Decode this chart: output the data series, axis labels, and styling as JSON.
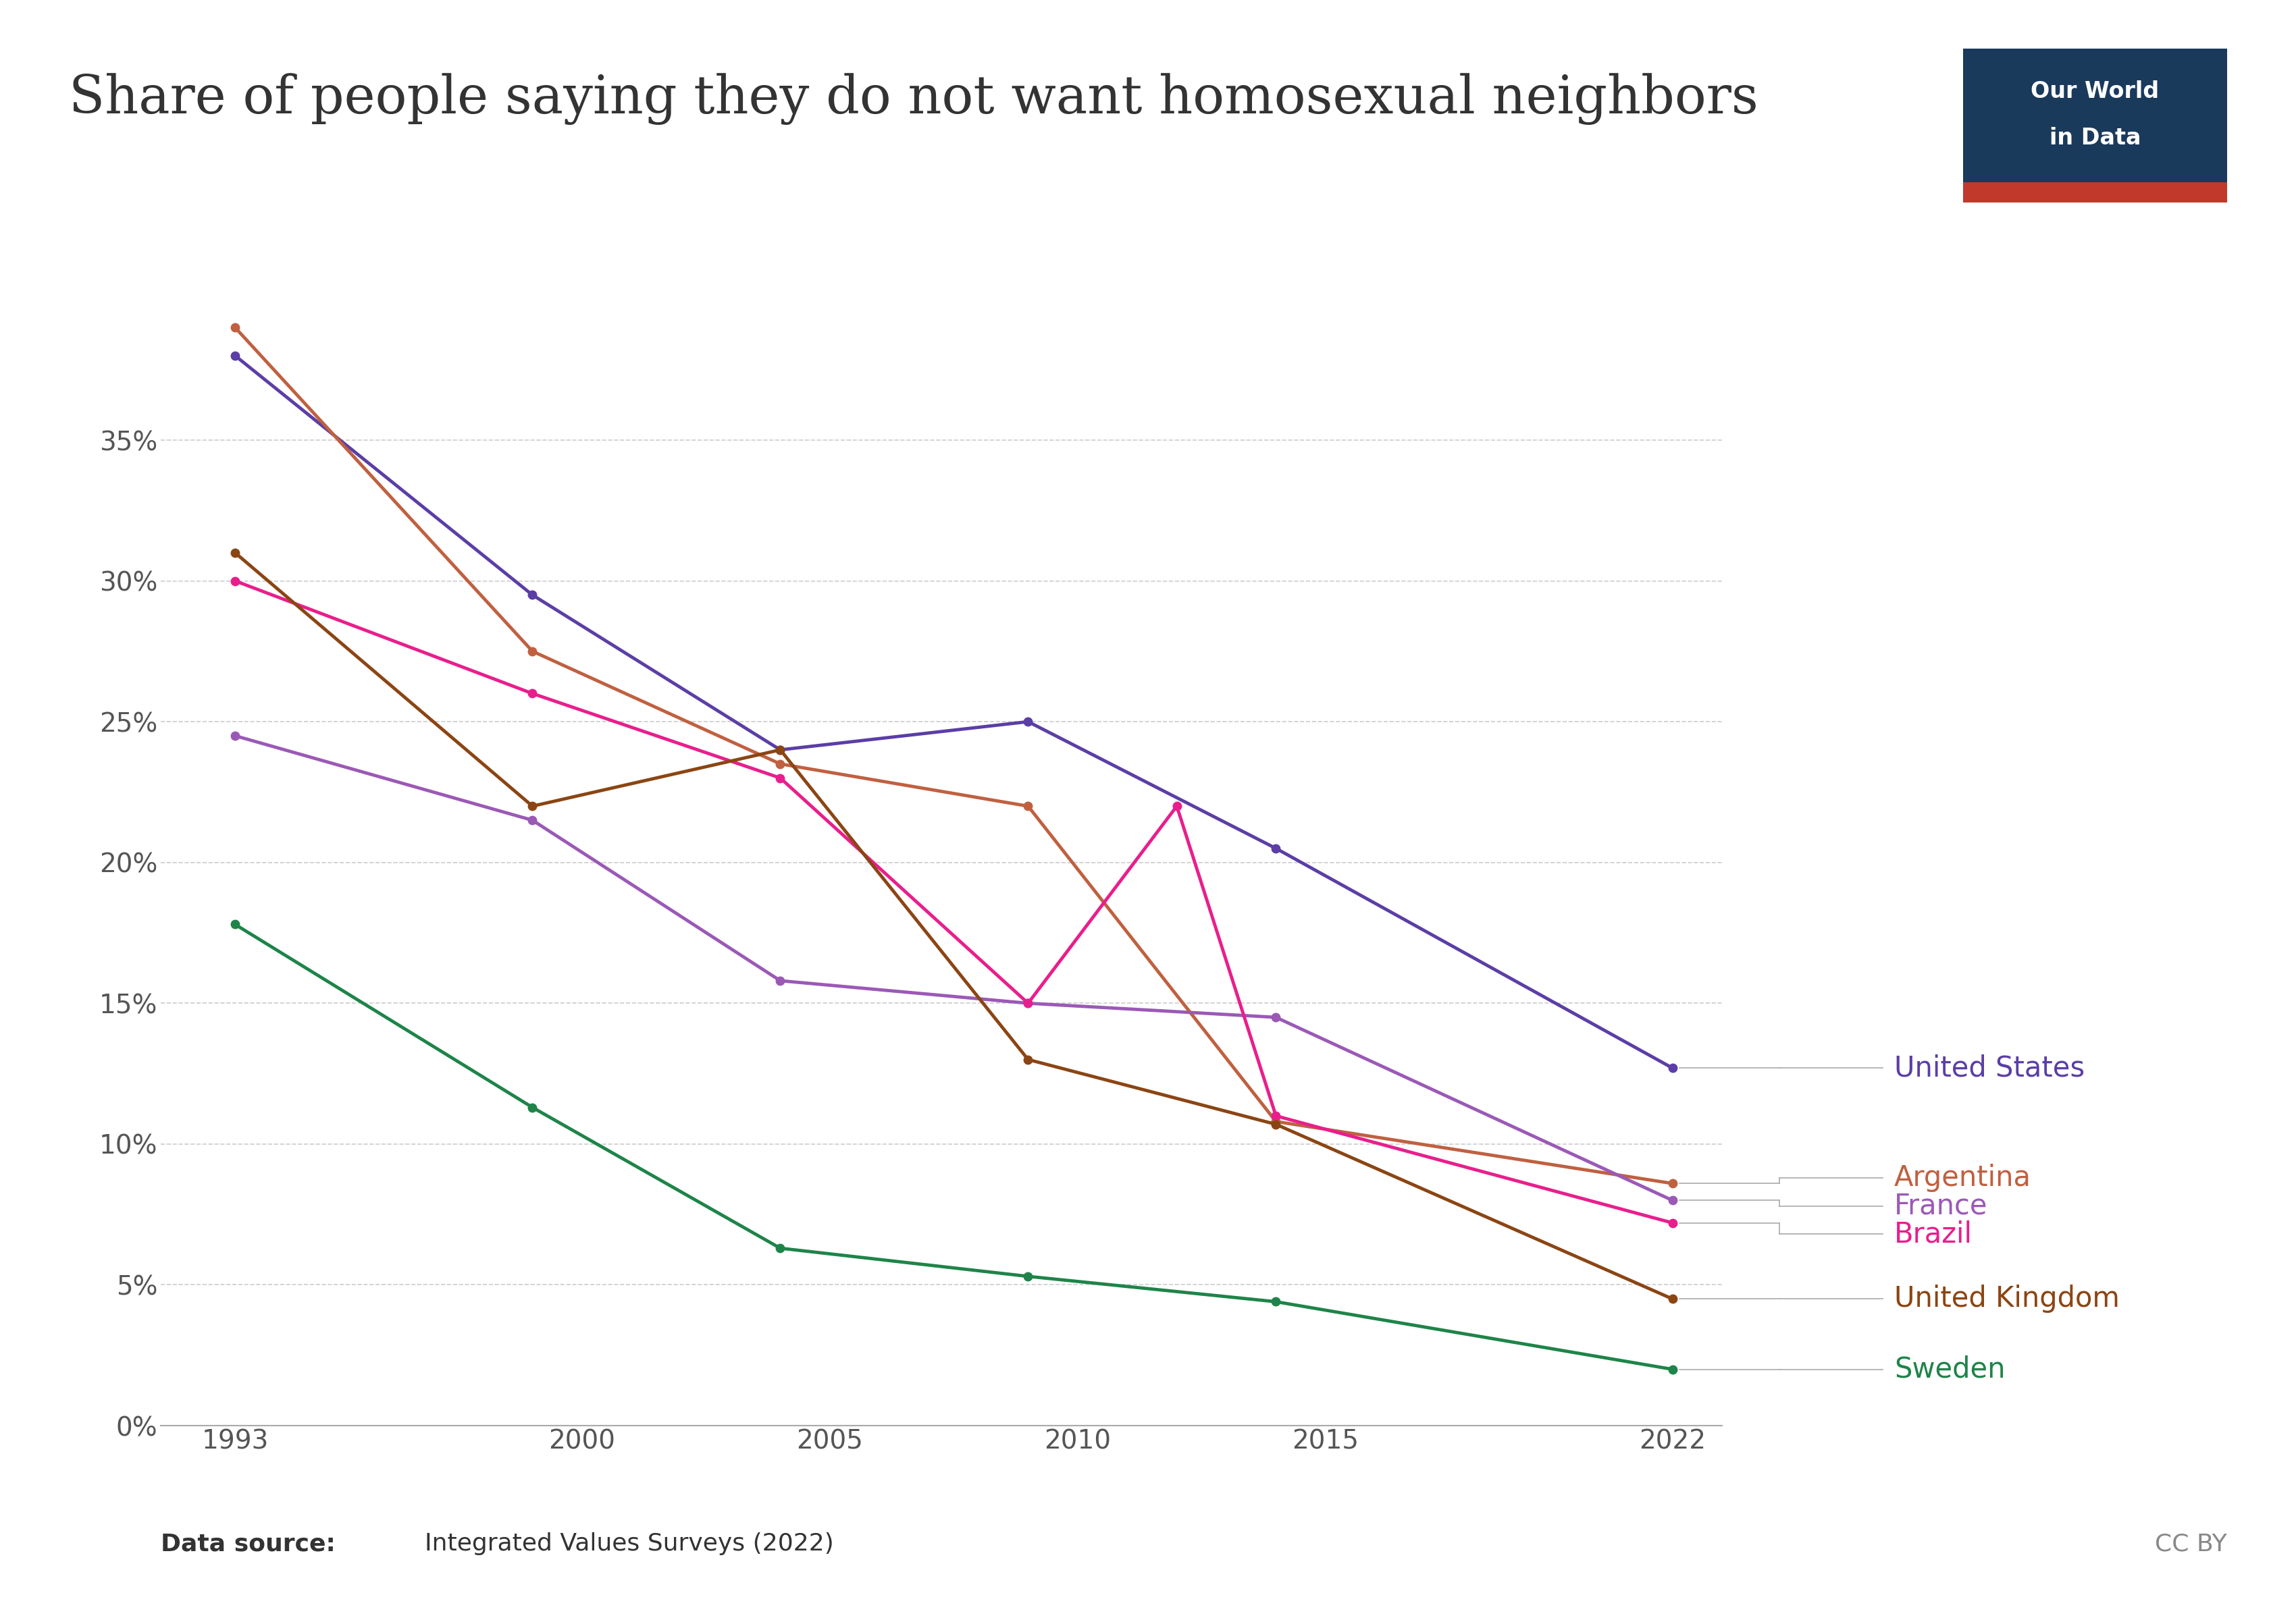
{
  "title": "Share of people saying they do not want homosexual neighbors",
  "data_source": "Integrated Values Surveys (2022)",
  "cc_by": "CC BY",
  "series": [
    {
      "name": "United States",
      "color": "#5B3EA6",
      "years": [
        1993,
        1999,
        2004,
        2009,
        2014,
        2022
      ],
      "values": [
        0.38,
        0.295,
        0.24,
        0.25,
        0.205,
        0.127
      ]
    },
    {
      "name": "Argentina",
      "color": "#C06040",
      "years": [
        1993,
        1999,
        2004,
        2009,
        2014,
        2022
      ],
      "values": [
        0.39,
        0.275,
        0.235,
        0.22,
        0.108,
        0.086
      ]
    },
    {
      "name": "France",
      "color": "#9B59B6",
      "years": [
        1993,
        1999,
        2004,
        2009,
        2014,
        2022
      ],
      "values": [
        0.245,
        0.215,
        0.158,
        0.15,
        0.145,
        0.08
      ]
    },
    {
      "name": "Brazil",
      "color": "#E91E8C",
      "years": [
        1993,
        1999,
        2004,
        2009,
        2012,
        2014,
        2022
      ],
      "values": [
        0.3,
        0.26,
        0.23,
        0.15,
        0.22,
        0.11,
        0.072
      ]
    },
    {
      "name": "United Kingdom",
      "color": "#8B4513",
      "years": [
        1993,
        1999,
        2004,
        2009,
        2014,
        2022
      ],
      "values": [
        0.31,
        0.22,
        0.24,
        0.13,
        0.107,
        0.045
      ]
    },
    {
      "name": "Sweden",
      "color": "#1E8449",
      "years": [
        1993,
        1999,
        2004,
        2009,
        2014,
        2022
      ],
      "values": [
        0.178,
        0.113,
        0.063,
        0.053,
        0.044,
        0.02
      ]
    }
  ],
  "label_y_positions": {
    "United States": 0.127,
    "Argentina": 0.086,
    "France": 0.078,
    "Brazil": 0.072,
    "United Kingdom": 0.045,
    "Sweden": 0.02
  },
  "ylim": [
    0,
    0.42
  ],
  "yticks": [
    0.0,
    0.05,
    0.1,
    0.15,
    0.2,
    0.25,
    0.3,
    0.35
  ],
  "ytick_labels": [
    "0%",
    "5%",
    "10%",
    "15%",
    "20%",
    "25%",
    "30%",
    "35%"
  ],
  "xlim": [
    1991.5,
    2023
  ],
  "xticks": [
    1993,
    2000,
    2005,
    2010,
    2015,
    2022
  ],
  "xtick_labels": [
    "1993",
    "2000",
    "2005",
    "2010",
    "2015",
    "2022"
  ],
  "background_color": "#ffffff",
  "grid_color": "#cccccc",
  "owid_box_color": "#1a3a5c",
  "owid_text_color": "#ffffff",
  "owid_red": "#c0392b",
  "title_fontsize": 56,
  "tick_fontsize": 28,
  "annotation_fontsize": 30,
  "datasource_fontsize": 26,
  "line_width": 3.5,
  "marker_size": 9
}
